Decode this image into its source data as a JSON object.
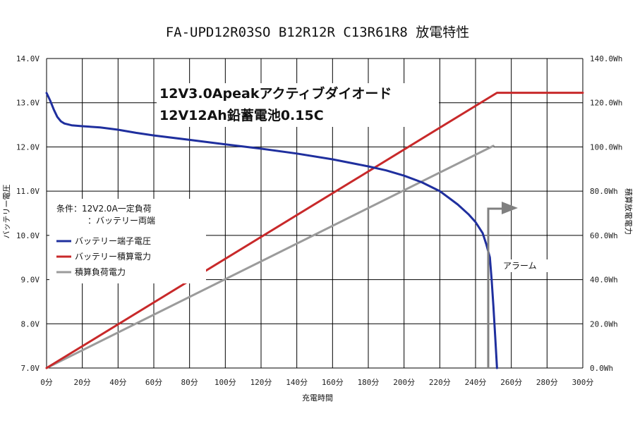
{
  "chart_data": {
    "type": "line",
    "title": "FA-UPD12R03SO B12R12R C13R61R8 放電特性",
    "xlabel": "充電時間",
    "ylabel_left": "バッテリー電圧",
    "ylabel_right": "積算放電電力",
    "x_range": [
      0,
      300
    ],
    "y_left_range": [
      7.0,
      14.0
    ],
    "y_right_range": [
      0,
      140
    ],
    "x_ticks": [
      "0分",
      "20分",
      "40分",
      "60分",
      "80分",
      "100分",
      "120分",
      "140分",
      "160分",
      "180分",
      "200分",
      "220分",
      "240分",
      "260分",
      "280分",
      "300分"
    ],
    "y_left_ticks": [
      "7.0V",
      "8.0V",
      "9.0V",
      "10.0V",
      "11.0V",
      "12.0V",
      "13.0V",
      "14.0V"
    ],
    "y_right_ticks": [
      "0.0Wh",
      "20.0Wh",
      "40.0Wh",
      "60.0Wh",
      "80.0Wh",
      "100.0Wh",
      "120.0Wh",
      "140.0Wh"
    ],
    "grid": true,
    "legend_position": "left-middle",
    "annotations": {
      "line1": "12V3.0Apeakアクティブダイオード",
      "line2": "12V12Ah鉛蓄電池0.15C",
      "conditions_line1": "条件：12V2.0A一定負荷",
      "conditions_line2": "：バッテリー両端",
      "alarm": "アラーム"
    },
    "series": [
      {
        "name": "バッテリー端子電圧",
        "axis": "left",
        "color": "#1f2f9e",
        "points": [
          [
            0,
            13.22
          ],
          [
            2,
            13.05
          ],
          [
            4,
            12.85
          ],
          [
            6,
            12.68
          ],
          [
            8,
            12.58
          ],
          [
            10,
            12.53
          ],
          [
            14,
            12.49
          ],
          [
            20,
            12.47
          ],
          [
            30,
            12.44
          ],
          [
            40,
            12.39
          ],
          [
            50,
            12.32
          ],
          [
            60,
            12.26
          ],
          [
            80,
            12.16
          ],
          [
            100,
            12.06
          ],
          [
            120,
            11.96
          ],
          [
            140,
            11.85
          ],
          [
            160,
            11.72
          ],
          [
            180,
            11.56
          ],
          [
            190,
            11.47
          ],
          [
            200,
            11.35
          ],
          [
            210,
            11.2
          ],
          [
            220,
            11.0
          ],
          [
            230,
            10.7
          ],
          [
            236,
            10.48
          ],
          [
            240,
            10.3
          ],
          [
            244,
            10.05
          ],
          [
            246,
            9.8
          ],
          [
            248,
            9.5
          ],
          [
            249,
            9.0
          ],
          [
            250,
            8.4
          ],
          [
            251,
            7.7
          ],
          [
            252,
            7.0
          ]
        ]
      },
      {
        "name": "バッテリー積算電力",
        "axis": "right",
        "color": "#c8292a",
        "points": [
          [
            0,
            0
          ],
          [
            252,
            124.5
          ],
          [
            300,
            124.5
          ]
        ]
      },
      {
        "name": "積算負荷電力",
        "axis": "right",
        "color": "#9b9b9b",
        "points": [
          [
            0,
            0
          ],
          [
            250,
            100.5
          ]
        ]
      }
    ]
  },
  "colors": {
    "voltage": "#1f2f9e",
    "battery_energy": "#c8292a",
    "load_energy": "#9b9b9b",
    "alarm": "#808080",
    "grid": "#000000"
  }
}
